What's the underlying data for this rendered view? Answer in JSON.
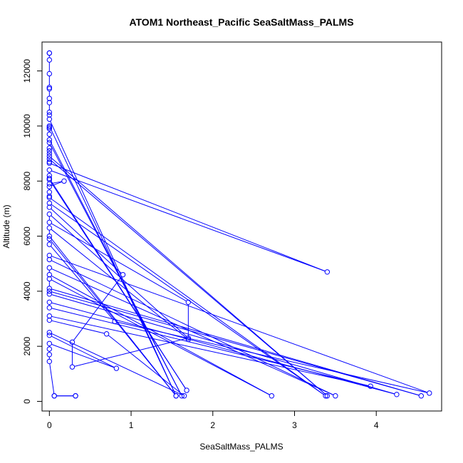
{
  "chart_data": {
    "type": "scatter",
    "title": "ATOM1 Northeast_Pacific SeaSaltMass_PALMS",
    "xlabel": "SeaSaltMass_PALMS",
    "ylabel": "Altitude (m)",
    "xlim": [
      -0.09,
      4.8
    ],
    "ylim": [
      -350,
      13050
    ],
    "xticks": [
      0,
      1,
      2,
      3,
      4
    ],
    "yticks": [
      0,
      2000,
      4000,
      6000,
      8000,
      10000,
      12000
    ],
    "grid": false,
    "colors": {
      "series": "#0000ff",
      "axis": "#000000",
      "background": "#ffffff"
    },
    "series": [
      {
        "marker": "open-circle",
        "line": true,
        "x": [
          0.0,
          0.0,
          0.0,
          0.0,
          0.0,
          0.0,
          0.0,
          0.0,
          0.0,
          0.0,
          0.0,
          1.55,
          0.0,
          0.0,
          0.0,
          0.0,
          0.0,
          1.62,
          0.0,
          0.0,
          0.0,
          0.0,
          0.0,
          3.4,
          0.0,
          0.0,
          0.0,
          3.4,
          0.0,
          0.0,
          0.0,
          1.68,
          0.0,
          0.0,
          0.18,
          0.0,
          0.0,
          0.0,
          0.0,
          3.38,
          0.0,
          0.0,
          0.9,
          0.28,
          0.28,
          1.7,
          0.0,
          0.0,
          1.7,
          1.7,
          0.0,
          0.0,
          1.55,
          0.0,
          0.0,
          0.8,
          4.65,
          0.0,
          0.0,
          3.5,
          0.0,
          0.0,
          2.72,
          0.0,
          0.0,
          4.55,
          0.0,
          0.0,
          4.25,
          0.0,
          0.0,
          3.93,
          0.0,
          0.0,
          0.7,
          1.65,
          0.0,
          0.0,
          0.82,
          0.0,
          0.0,
          0.0,
          0.0,
          0.06,
          0.32,
          0.32,
          0.06
        ],
        "y": [
          12650,
          12650,
          12400,
          11900,
          11400,
          11350,
          11000,
          10850,
          10500,
          10400,
          10250,
          200,
          10000,
          9950,
          9900,
          9700,
          9500,
          200,
          9400,
          9200,
          9100,
          9000,
          8900,
          200,
          8800,
          8700,
          8650,
          4700,
          8400,
          8200,
          8100,
          400,
          8050,
          7900,
          8000,
          7800,
          7600,
          7450,
          7400,
          200,
          7200,
          7050,
          4600,
          2150,
          1250,
          2300,
          6800,
          6500,
          3600,
          2250,
          6300,
          6000,
          200,
          5900,
          5700,
          2900,
          300,
          5300,
          5150,
          200,
          4850,
          4600,
          200,
          4450,
          4100,
          200,
          4000,
          3900,
          250,
          3600,
          3400,
          550,
          3100,
          2950,
          2450,
          200,
          2500,
          2400,
          1200,
          2100,
          1900,
          1700,
          1450,
          200,
          200,
          200,
          200
        ]
      }
    ]
  }
}
